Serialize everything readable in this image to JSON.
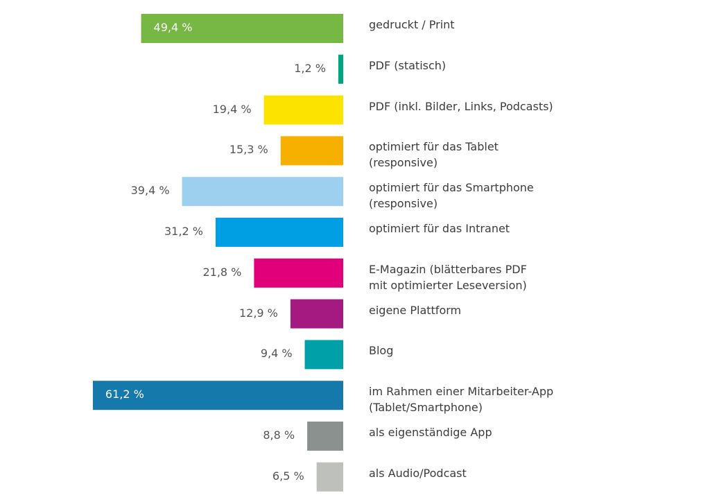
{
  "chart_data": {
    "type": "barh",
    "categories": [
      "gedruckt / Print",
      "PDF (statisch)",
      "PDF (inkl. Bilder, Links, Podcasts)",
      "optimiert für das Tablet\n(responsive)",
      "optimiert für das Smartphone\n(responsive)",
      "optimiert für das Intranet",
      "E-Magazin (blätterbares PDF\nmit optimierter Leseversion)",
      "eigene Plattform",
      "Blog",
      "im Rahmen einer Mitarbeiter-App\n(Tablet/Smartphone)",
      "als eigenständige App",
      "als Audio/Podcast"
    ],
    "values": [
      49.4,
      1.2,
      19.4,
      15.3,
      39.4,
      31.2,
      21.8,
      12.9,
      9.4,
      61.2,
      8.8,
      6.5
    ],
    "value_labels": [
      "49,4 %",
      "1,2 %",
      "19,4 %",
      "15,3 %",
      "39,4 %",
      "31,2 %",
      "21,8 %",
      "12,9 %",
      "9,4 %",
      "61,2 %",
      "8,8 %",
      "6,5 %"
    ],
    "colors": [
      "#76b843",
      "#00a57f",
      "#fde300",
      "#f8b000",
      "#9dcfee",
      "#009fe3",
      "#e2007a",
      "#a51a81",
      "#00a0a8",
      "#1579ab",
      "#8b918e",
      "#bec0bb"
    ]
  }
}
